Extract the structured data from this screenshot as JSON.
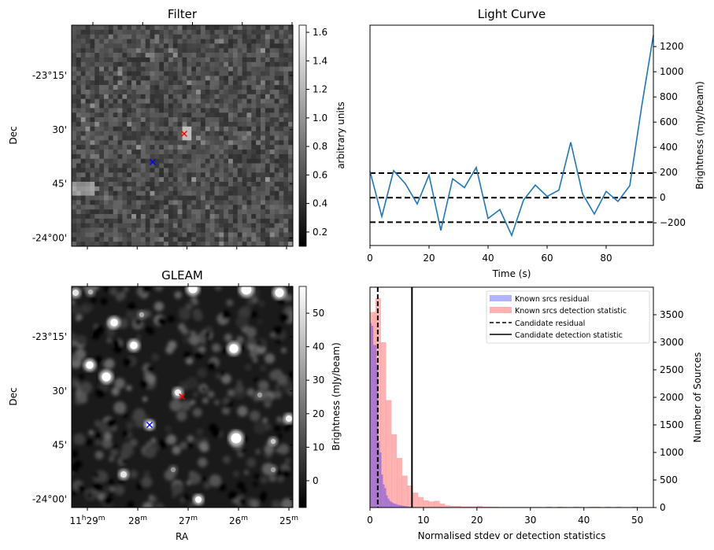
{
  "chart_data": [
    {
      "type": "heatmap",
      "title": "Filter",
      "xlabel": "",
      "ylabel": "Dec",
      "y_tick_labels": [
        "-23°15'",
        "30'",
        "45'",
        "-24°00'"
      ],
      "colorbar": {
        "label": "arbitrary units",
        "range": [
          0.1,
          1.65
        ],
        "tick_labels": [
          "0.2",
          "0.4",
          "0.6",
          "0.8",
          "1.0",
          "1.2",
          "1.4",
          "1.6"
        ],
        "ticks": [
          0.2,
          0.4,
          0.6,
          0.8,
          1.0,
          1.2,
          1.4,
          1.6
        ],
        "colormap": "gray"
      },
      "markers": [
        {
          "name": "candidate",
          "symbol": "x",
          "color": "#ff0000",
          "ra_min": 27.1,
          "dec_arcmin": -32
        },
        {
          "name": "known-source",
          "symbol": "x",
          "color": "#0000ff",
          "ra_min": 27.75,
          "dec_arcmin": -39
        }
      ]
    },
    {
      "type": "line",
      "title": "Light Curve",
      "xlabel": "Time (s)",
      "ylabel": "Brightness (mJy/beam)",
      "xlim": [
        0,
        96
      ],
      "ylim": [
        -380,
        1370
      ],
      "x_ticks": [
        0,
        20,
        40,
        60,
        80
      ],
      "y_ticks": [
        -200,
        0,
        200,
        400,
        600,
        800,
        1000,
        1200
      ],
      "x_tick_labels": [
        "0",
        "20",
        "40",
        "60",
        "80"
      ],
      "y_tick_labels": [
        "−200",
        "0",
        "200",
        "400",
        "600",
        "800",
        "1000",
        "1200"
      ],
      "series": [
        {
          "name": "light curve",
          "color": "#1f77b4",
          "x": [
            0,
            4,
            8,
            12,
            16,
            20,
            24,
            28,
            32,
            36,
            40,
            44,
            48,
            52,
            56,
            60,
            64,
            68,
            72,
            76,
            80,
            84,
            88,
            92,
            96
          ],
          "y": [
            210,
            -150,
            215,
            110,
            -50,
            180,
            -260,
            150,
            80,
            240,
            -165,
            -95,
            -300,
            -20,
            100,
            10,
            60,
            440,
            30,
            -130,
            50,
            -30,
            95,
            720,
            1290
          ]
        }
      ],
      "hlines": [
        {
          "y": 195,
          "style": "dashed",
          "color": "#000000"
        },
        {
          "y": 0,
          "style": "dashed",
          "color": "#000000"
        },
        {
          "y": -195,
          "style": "dashed",
          "color": "#000000"
        }
      ]
    },
    {
      "type": "heatmap",
      "title": "GLEAM",
      "xlabel": "RA",
      "ylabel": "Dec",
      "x_tick_labels": [
        {
          "main": "11",
          "sup1": "h",
          "mid": "29",
          "sup2": "m"
        },
        {
          "main": "28",
          "sup2": "m"
        },
        {
          "main": "27",
          "sup2": "m"
        },
        {
          "main": "26",
          "sup2": "m"
        },
        {
          "main": "25",
          "sup2": "m"
        }
      ],
      "y_tick_labels": [
        "-23°15'",
        "30'",
        "45'",
        "-24°00'"
      ],
      "colorbar": {
        "label": "Brightness (mJy/beam)",
        "range": [
          -8,
          58
        ],
        "tick_labels": [
          "0",
          "10",
          "20",
          "30",
          "40",
          "50"
        ],
        "ticks": [
          0,
          10,
          20,
          30,
          40,
          50
        ],
        "colormap": "gray"
      },
      "markers": [
        {
          "name": "candidate",
          "symbol": "x",
          "color": "#ff0000",
          "ra_min": 27.1,
          "dec_arcmin": -32
        },
        {
          "name": "known-source",
          "symbol": "x",
          "color": "#0000ff",
          "ra_min": 27.75,
          "dec_arcmin": -39
        }
      ]
    },
    {
      "type": "bar",
      "title": "",
      "xlabel": "Normalised stdev or detection statistics",
      "ylabel": "Number of Sources",
      "xlim": [
        0,
        53
      ],
      "ylim": [
        0,
        4000
      ],
      "x_ticks": [
        0,
        10,
        20,
        30,
        40,
        50
      ],
      "y_ticks": [
        0,
        500,
        1000,
        1500,
        2000,
        2500,
        3000,
        3500
      ],
      "x_tick_labels": [
        "0",
        "10",
        "20",
        "30",
        "40",
        "50"
      ],
      "y_tick_labels": [
        "0",
        "500",
        "1000",
        "1500",
        "2000",
        "2500",
        "3000",
        "3500"
      ],
      "legend_position": "top-right",
      "series": [
        {
          "name": "Known srcs residual",
          "color": "#0000ff",
          "alpha": 0.3,
          "bin_width": 0.3,
          "bin_start": 0,
          "values": [
            3350,
            3300,
            2950,
            2950,
            2600,
            1200,
            1000,
            600,
            420,
            350,
            220,
            160,
            120,
            100,
            80,
            70,
            60,
            50,
            45,
            40,
            35,
            30,
            25,
            20,
            15,
            12,
            10
          ]
        },
        {
          "name": "Known srcs detection statistic",
          "color": "#ff0000",
          "alpha": 0.3,
          "bin_width": 1.0,
          "bin_start": 0,
          "values": [
            3550,
            3800,
            3000,
            1950,
            1330,
            900,
            580,
            400,
            270,
            190,
            130,
            110,
            120,
            70,
            40,
            30,
            30,
            20,
            20,
            20,
            30,
            15,
            15,
            15,
            10,
            10,
            10,
            10,
            10,
            10,
            10,
            10,
            0,
            15,
            0,
            15,
            10,
            0,
            15,
            10,
            0,
            15,
            15,
            0,
            15,
            0,
            15,
            0,
            0,
            15,
            0,
            0
          ]
        },
        {
          "name": "Candidate residual",
          "type": "vline",
          "style": "dashed",
          "color": "#000000",
          "x": 1.45
        },
        {
          "name": "Candidate detection statistic",
          "type": "vline",
          "style": "solid",
          "color": "#000000",
          "x": 7.85
        }
      ]
    }
  ]
}
